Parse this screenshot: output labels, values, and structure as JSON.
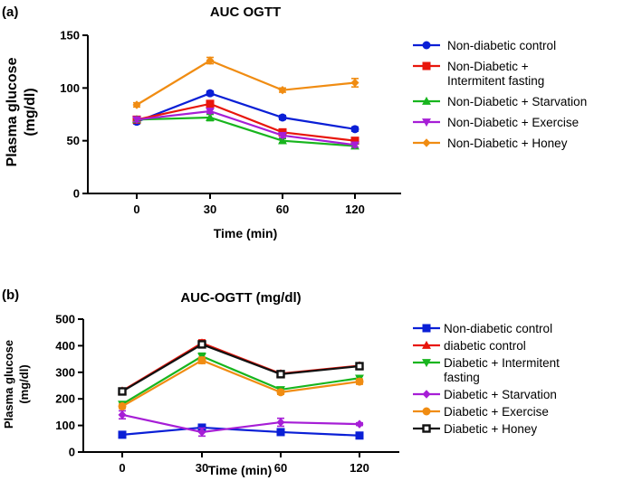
{
  "panels": [
    {
      "letter": "(a)",
      "ylabel_lines": [
        "Plasma glucose",
        "(mg/dl)"
      ]
    },
    {
      "letter": "(b)",
      "ylabel_lines": [
        "Plasma glucose",
        "(mg/dl)"
      ]
    }
  ],
  "chart_data": [
    {
      "type": "line",
      "title": "AUC OGTT",
      "xlabel": "Time (min)",
      "ylabel": "Plasma glucose (mg/dl)",
      "x": [
        0,
        30,
        60,
        120
      ],
      "x_ticks": [
        "0",
        "30",
        "60",
        "120"
      ],
      "ylim": [
        0,
        150
      ],
      "y_ticks": [
        0,
        50,
        100,
        150
      ],
      "grid": false,
      "legend_position": "right",
      "series": [
        {
          "name": "Non-diabetic control",
          "name_lines": [
            "Non-diabetic control"
          ],
          "color": "#0a1fd6",
          "marker": "circle",
          "values": [
            68,
            95,
            72,
            61
          ],
          "errors": [
            2,
            2,
            2,
            2
          ]
        },
        {
          "name": "Non-Diabetic + Intermitent fasting",
          "name_lines": [
            "Non-Diabetic +",
            "Intermitent fasting"
          ],
          "color": "#e8160c",
          "marker": "square",
          "values": [
            70,
            85,
            58,
            50
          ],
          "errors": [
            2,
            2,
            2,
            2
          ]
        },
        {
          "name": "Non-Diabetic + Starvation",
          "name_lines": [
            "Non-Diabetic + Starvation"
          ],
          "color": "#18b51e",
          "marker": "triangle-up",
          "values": [
            70,
            72,
            50,
            45
          ],
          "errors": [
            2,
            3,
            2,
            2
          ]
        },
        {
          "name": "Non-Diabetic + Exercise",
          "name_lines": [
            "Non-Diabetic + Exercise"
          ],
          "color": "#a61ed6",
          "marker": "triangle-down",
          "values": [
            70,
            78,
            55,
            46
          ],
          "errors": [
            2,
            2,
            2,
            2
          ]
        },
        {
          "name": "Non-Diabetic + Honey",
          "name_lines": [
            "Non-Diabetic + Honey"
          ],
          "color": "#f08c12",
          "marker": "diamond",
          "values": [
            84,
            126,
            98,
            105
          ],
          "errors": [
            2,
            3,
            2,
            4
          ]
        }
      ]
    },
    {
      "type": "line",
      "title": "AUC-OGTT (mg/dl)",
      "xlabel": "Time (min)",
      "ylabel": "Plasma glucose (mg/dl)",
      "x": [
        0,
        30,
        60,
        120
      ],
      "x_ticks": [
        "0",
        "30",
        "60",
        "120"
      ],
      "ylim": [
        0,
        500
      ],
      "y_ticks": [
        0,
        100,
        200,
        300,
        400,
        500
      ],
      "grid": false,
      "legend_position": "right",
      "series": [
        {
          "name": "Non-diabetic control",
          "name_lines": [
            "Non-diabetic control"
          ],
          "color": "#0a1fd6",
          "marker": "square",
          "values": [
            65,
            92,
            75,
            62
          ],
          "errors": [
            5,
            6,
            5,
            5
          ]
        },
        {
          "name": "diabetic control",
          "name_lines": [
            "diabetic control"
          ],
          "color": "#e8160c",
          "marker": "triangle-up",
          "values": [
            230,
            410,
            295,
            325
          ],
          "errors": [
            8,
            12,
            8,
            10
          ]
        },
        {
          "name": "Diabetic + Intermitent fasting",
          "name_lines": [
            "Diabetic + Intermitent",
            "fasting"
          ],
          "color": "#18b51e",
          "marker": "triangle-down",
          "values": [
            180,
            360,
            235,
            278
          ],
          "errors": [
            8,
            12,
            8,
            8
          ]
        },
        {
          "name": "Diabetic + Starvation",
          "name_lines": [
            "Diabetic + Starvation"
          ],
          "color": "#a61ed6",
          "marker": "diamond",
          "values": [
            140,
            75,
            112,
            105
          ],
          "errors": [
            15,
            15,
            15,
            5
          ]
        },
        {
          "name": "Diabetic + Exercise",
          "name_lines": [
            "Diabetic + Exercise"
          ],
          "color": "#f08c12",
          "marker": "circle",
          "values": [
            172,
            345,
            225,
            265
          ],
          "errors": [
            8,
            12,
            8,
            10
          ]
        },
        {
          "name": "Diabetic + Honey",
          "name_lines": [
            "Diabetic + Honey"
          ],
          "color": "#111111",
          "marker": "square-open",
          "values": [
            228,
            405,
            293,
            323
          ],
          "errors": [
            5,
            12,
            8,
            10
          ]
        }
      ]
    }
  ]
}
